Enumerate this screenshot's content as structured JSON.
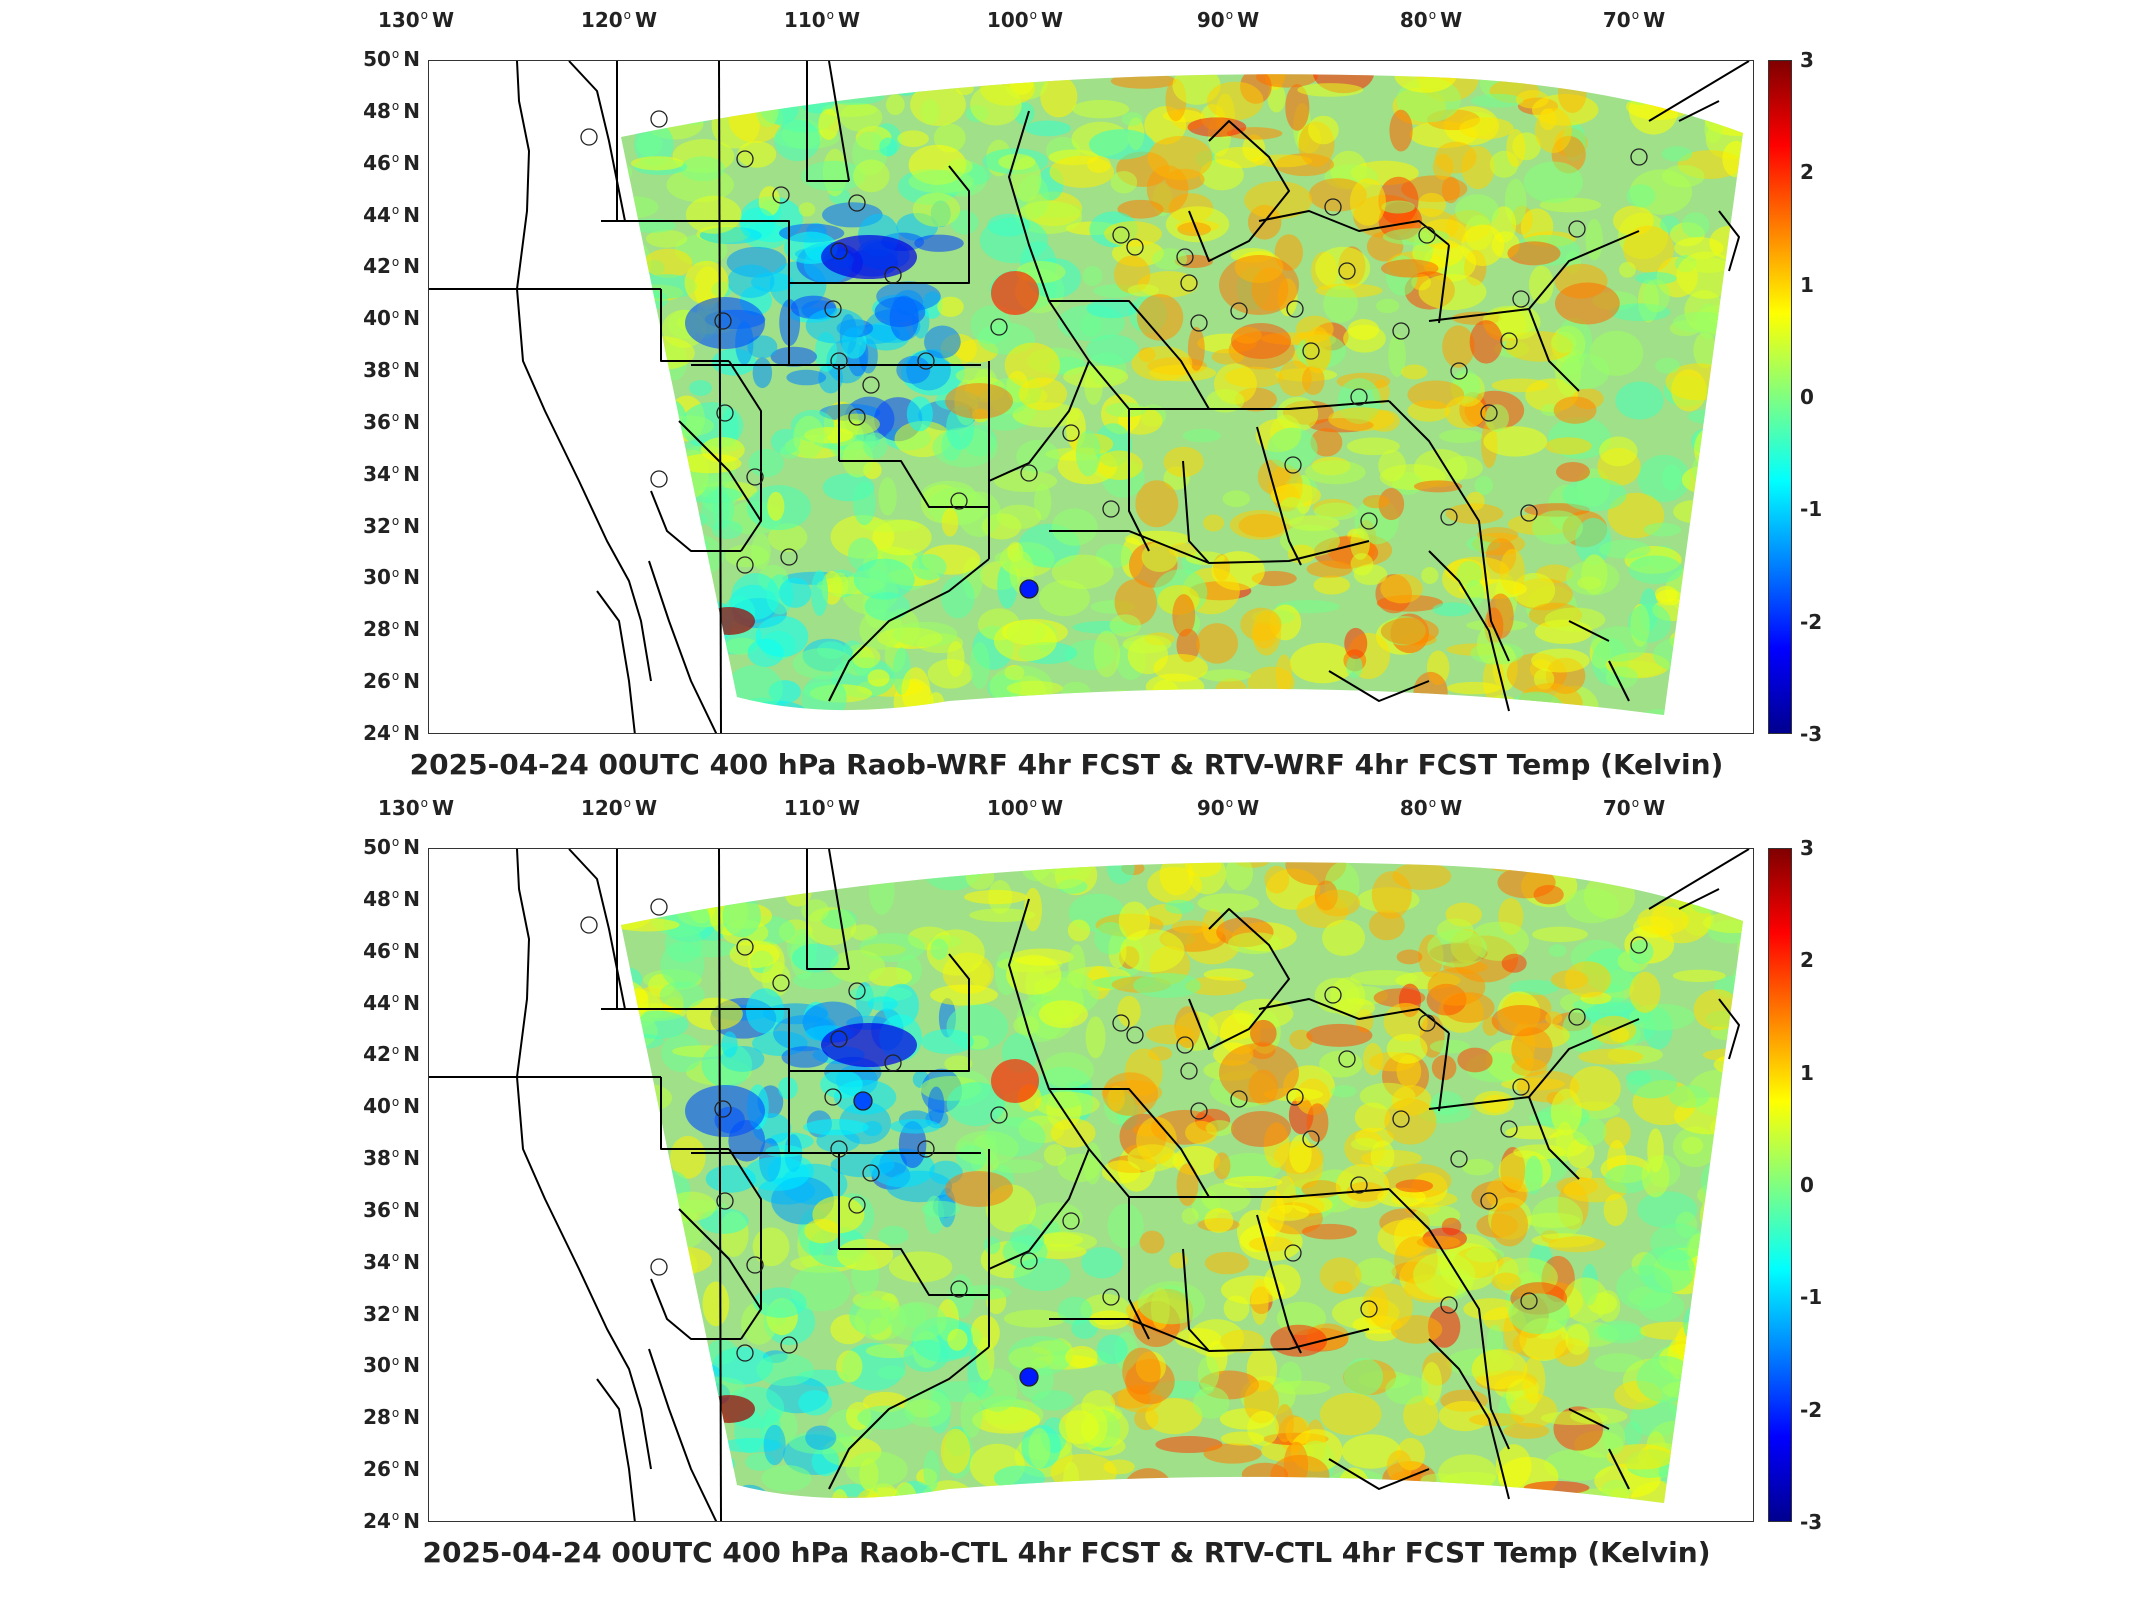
{
  "lon_ticks": [
    {
      "label": "130",
      "hemi": "W"
    },
    {
      "label": "120",
      "hemi": "W"
    },
    {
      "label": "110",
      "hemi": "W"
    },
    {
      "label": "100",
      "hemi": "W"
    },
    {
      "label": "90",
      "hemi": "W"
    },
    {
      "label": "80",
      "hemi": "W"
    },
    {
      "label": "70",
      "hemi": "W"
    }
  ],
  "lat_ticks": [
    {
      "label": "50",
      "hemi": "N"
    },
    {
      "label": "48",
      "hemi": "N"
    },
    {
      "label": "46",
      "hemi": "N"
    },
    {
      "label": "44",
      "hemi": "N"
    },
    {
      "label": "42",
      "hemi": "N"
    },
    {
      "label": "40",
      "hemi": "N"
    },
    {
      "label": "38",
      "hemi": "N"
    },
    {
      "label": "36",
      "hemi": "N"
    },
    {
      "label": "34",
      "hemi": "N"
    },
    {
      "label": "32",
      "hemi": "N"
    },
    {
      "label": "30",
      "hemi": "N"
    },
    {
      "label": "28",
      "hemi": "N"
    },
    {
      "label": "26",
      "hemi": "N"
    },
    {
      "label": "24",
      "hemi": "N"
    }
  ],
  "colorbar_ticks": [
    "3",
    "2",
    "1",
    "0",
    "-1",
    "-2",
    "-3"
  ],
  "colorbar_range": [
    -3,
    3
  ],
  "colormap": "jet",
  "panels": [
    {
      "title": "2025-04-24 00UTC 400 hPa Raob-WRF 4hr FCST & RTV-WRF 4hr FCST Temp (Kelvin)"
    },
    {
      "title": "2025-04-24 00UTC 400 hPa Raob-CTL 4hr FCST & RTV-CTL 4hr FCST Temp (Kelvin)"
    }
  ],
  "colors": {
    "frame": "#333333",
    "coast": "#000000",
    "field_base": "#9fe089"
  }
}
